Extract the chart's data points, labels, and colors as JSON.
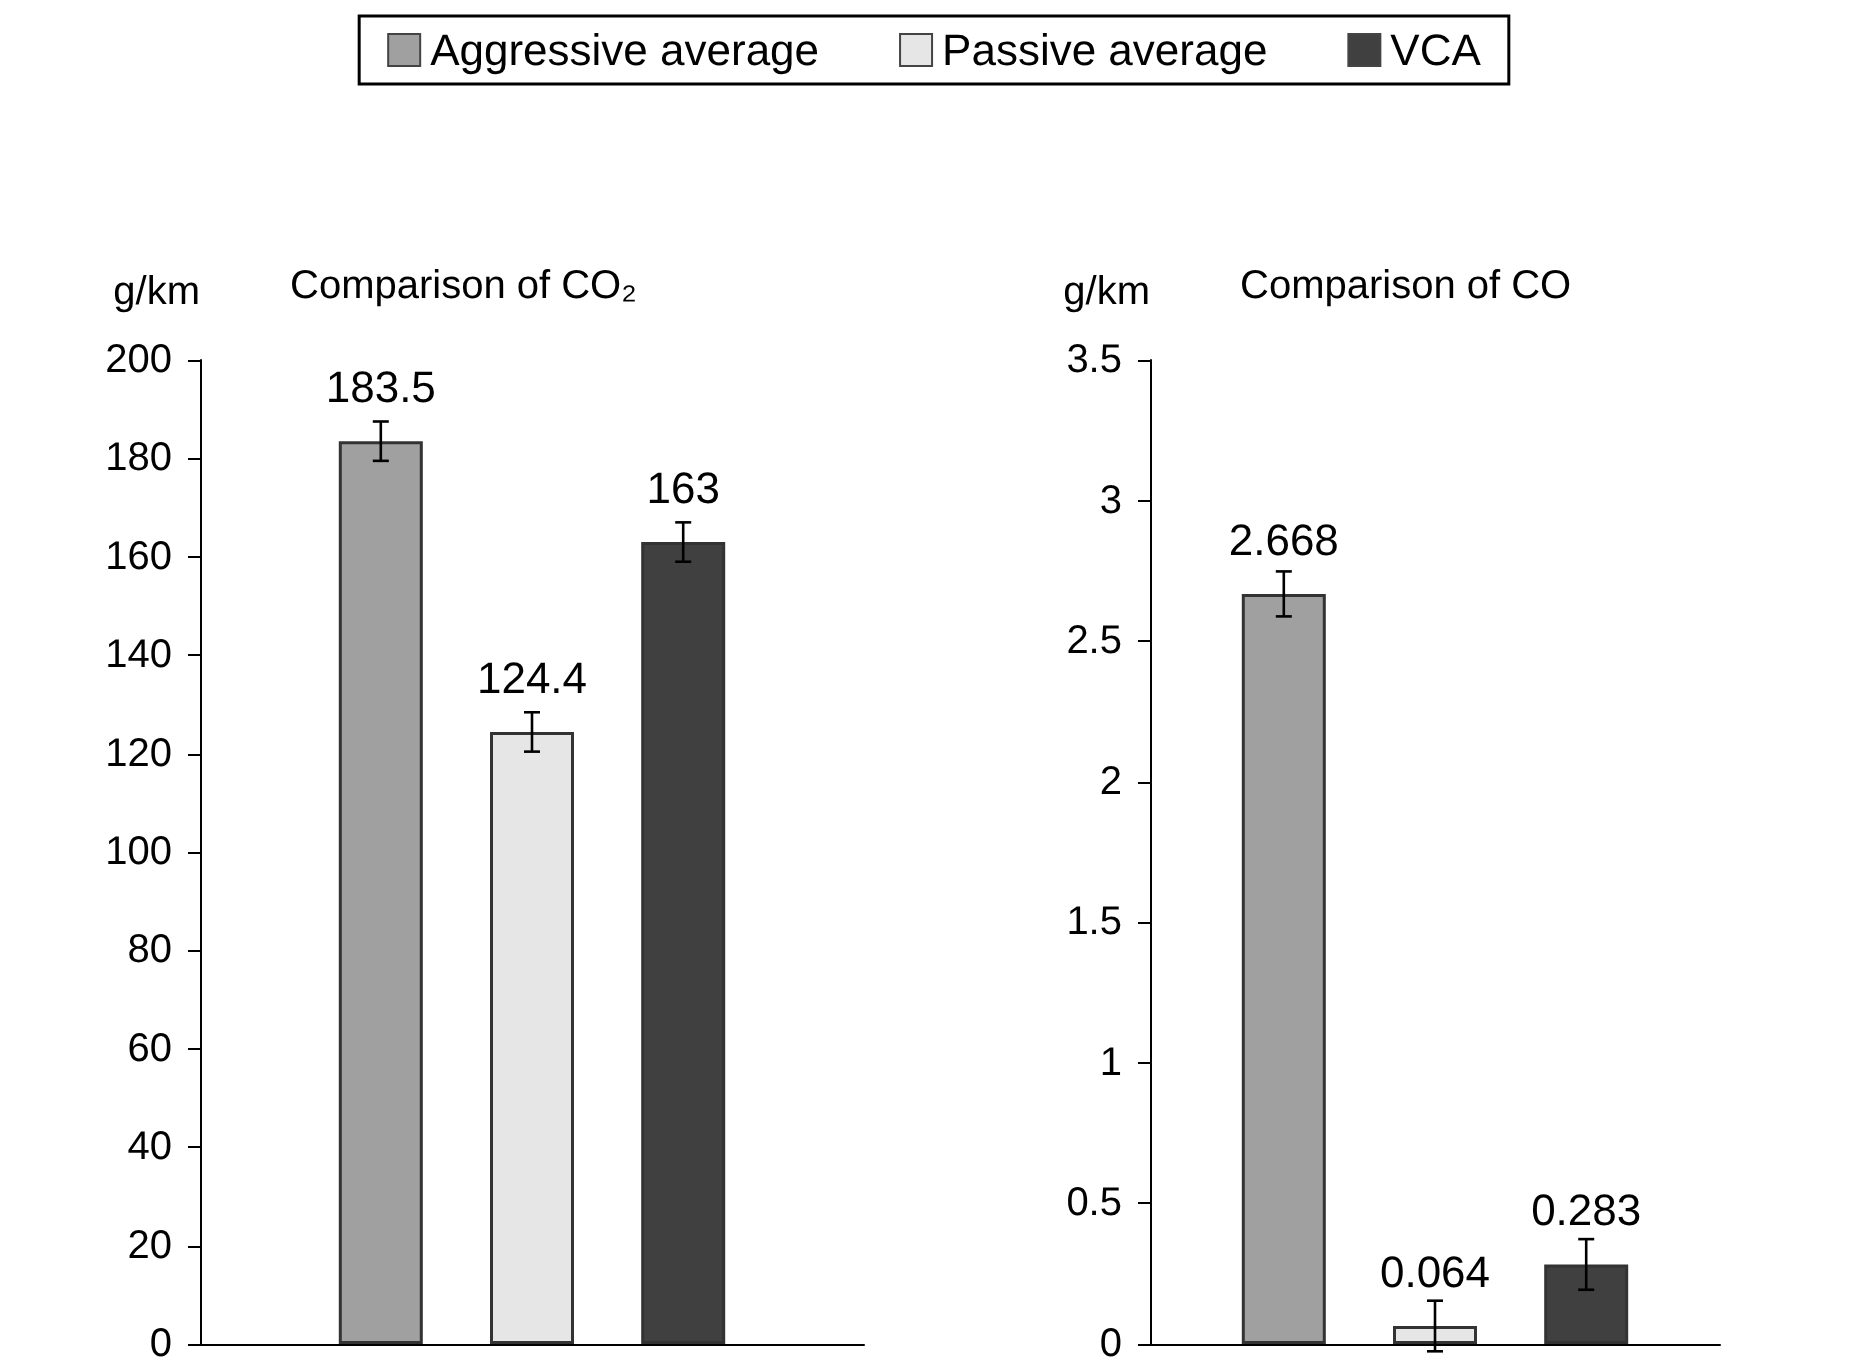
{
  "chart_data": [
    {
      "type": "bar",
      "title": "Comparison of CO₂",
      "ylabel": "g/km",
      "categories": [
        null
      ],
      "ylim": [
        0,
        200
      ],
      "yticks": [
        0,
        20,
        40,
        60,
        80,
        100,
        120,
        140,
        160,
        180,
        200
      ],
      "legend": "top",
      "data_labels": true,
      "grid": false,
      "series": [
        {
          "name": "Aggressive average",
          "color": "#a0a0a0",
          "values": [
            183.5
          ],
          "errors": [
            4
          ]
        },
        {
          "name": "Passive average",
          "color": "#e6e6e6",
          "values": [
            124.4
          ],
          "errors": [
            4
          ]
        },
        {
          "name": "VCA",
          "color": "#404040",
          "values": [
            163
          ],
          "errors": [
            4
          ]
        }
      ]
    },
    {
      "type": "bar",
      "title": "Comparison of CO",
      "ylabel": "g/km",
      "categories": [
        null
      ],
      "ylim": [
        0,
        3.5
      ],
      "yticks": [
        0,
        0.5,
        1,
        1.5,
        2,
        2.5,
        3,
        3.5
      ],
      "legend": false,
      "data_labels": true,
      "grid": false,
      "series": [
        {
          "color": "#a0a0a0",
          "values": [
            2.668
          ],
          "errors": [
            0.08
          ]
        },
        {
          "color": "#e6e6e6",
          "values": [
            0.064
          ],
          "errors": [
            0.09
          ]
        },
        {
          "color": "#404040",
          "values": [
            0.283
          ],
          "errors": [
            0.09
          ]
        }
      ]
    }
  ]
}
